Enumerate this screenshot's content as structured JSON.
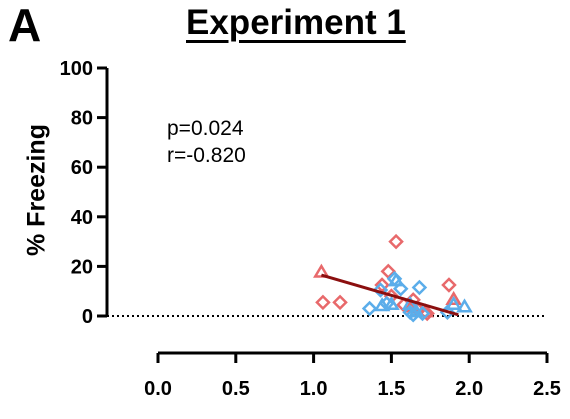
{
  "panel_letter": "A",
  "chart_data": {
    "type": "scatter",
    "title": "Experiment 1",
    "xlabel": "",
    "ylabel": "% Freezing",
    "xlim": [
      0.0,
      2.5
    ],
    "ylim": [
      0,
      100
    ],
    "xticks": [
      "0.0",
      "0.5",
      "1.0",
      "1.5",
      "2.0",
      "2.5"
    ],
    "yticks": [
      "0",
      "20",
      "40",
      "60",
      "80",
      "100"
    ],
    "grid": false,
    "legend": "none",
    "annotations": [
      "p=0.024",
      "r=-0.820"
    ],
    "reference_line": {
      "y": 0,
      "style": "dotted"
    },
    "series": [
      {
        "marker": "triangle",
        "color": "#e8696b",
        "points": [
          [
            1.05,
            17.5
          ],
          [
            1.63,
            3.5
          ],
          [
            1.72,
            1.5
          ],
          [
            1.9,
            6.5
          ]
        ]
      },
      {
        "marker": "diamond",
        "color": "#e8696b",
        "points": [
          [
            1.06,
            5.5
          ],
          [
            1.17,
            5.5
          ],
          [
            1.44,
            12.5
          ],
          [
            1.48,
            18
          ],
          [
            1.5,
            8
          ],
          [
            1.53,
            30
          ],
          [
            1.58,
            4.5
          ],
          [
            1.64,
            6.5
          ],
          [
            1.67,
            2.5
          ],
          [
            1.73,
            1
          ],
          [
            1.87,
            12.5
          ]
        ]
      },
      {
        "marker": "triangle",
        "color": "#5badea",
        "points": [
          [
            1.44,
            4
          ],
          [
            1.5,
            4.5
          ],
          [
            1.53,
            14
          ],
          [
            1.62,
            4.5
          ],
          [
            1.66,
            1.5
          ],
          [
            1.9,
            4.5
          ],
          [
            1.97,
            3.5
          ]
        ]
      },
      {
        "marker": "diamond",
        "color": "#5badea",
        "points": [
          [
            1.36,
            3
          ],
          [
            1.43,
            10.5
          ],
          [
            1.47,
            5
          ],
          [
            1.52,
            15
          ],
          [
            1.56,
            11
          ],
          [
            1.62,
            1.5
          ],
          [
            1.64,
            0.5
          ],
          [
            1.68,
            11.5
          ],
          [
            1.7,
            1
          ],
          [
            1.86,
            1.5
          ]
        ]
      }
    ],
    "fit_line": {
      "color": "#8b0f0f",
      "x": [
        1.05,
        1.93
      ],
      "y": [
        16.5,
        0.5
      ]
    }
  }
}
